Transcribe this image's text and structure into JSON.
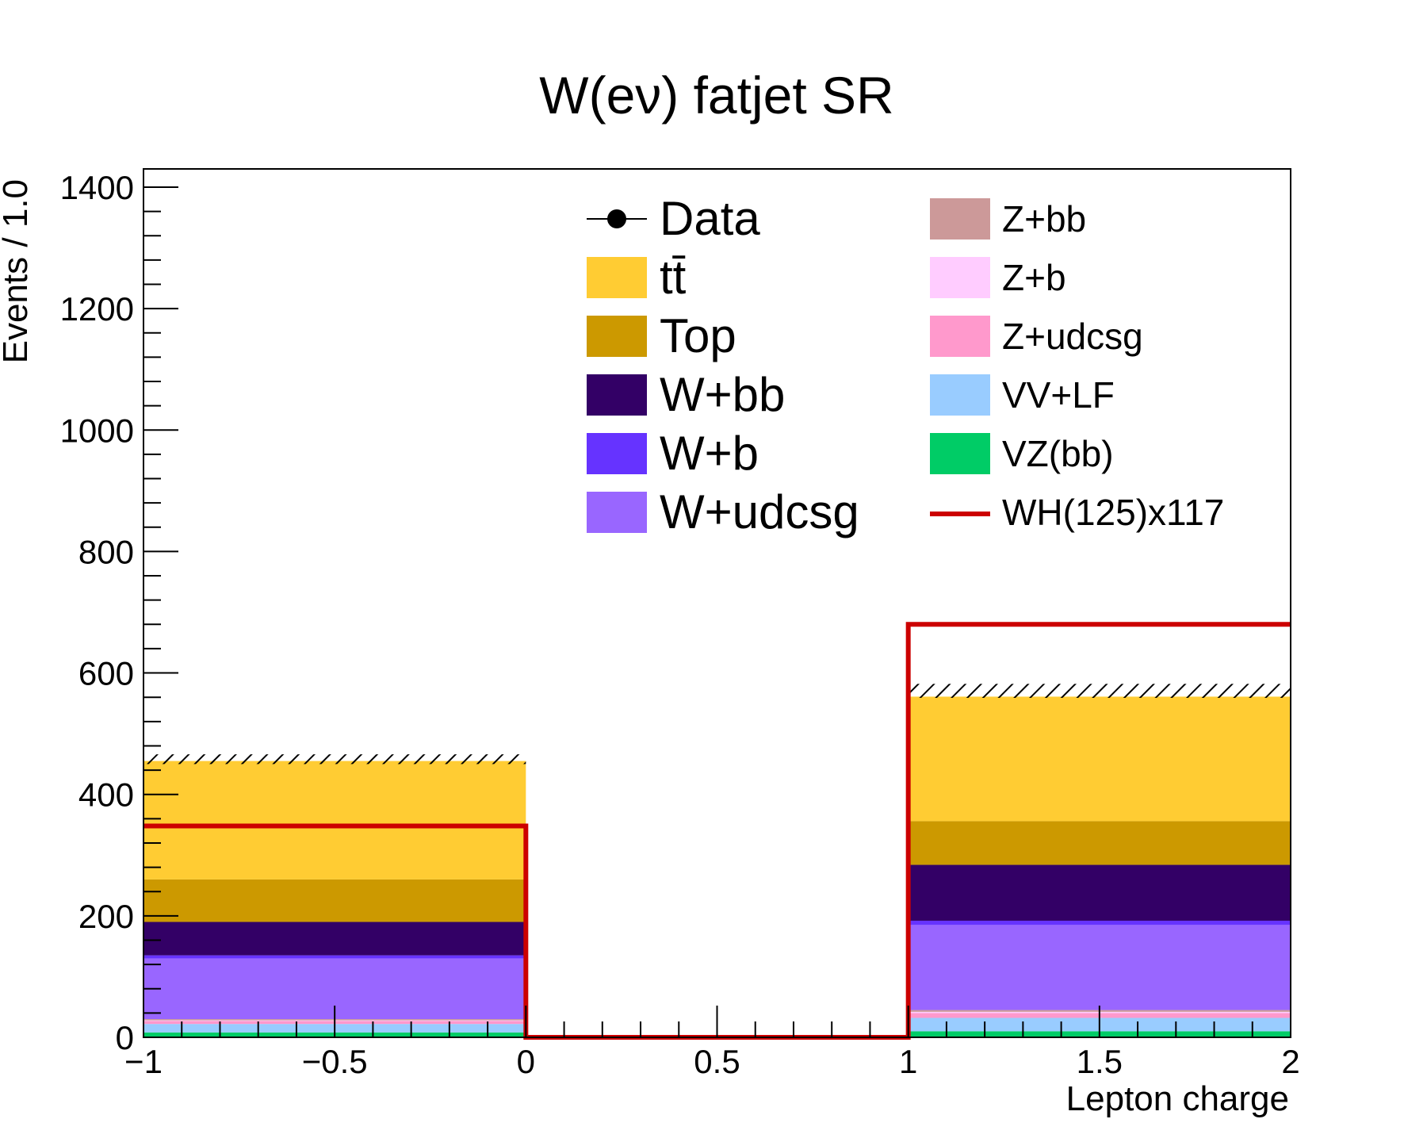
{
  "chart_data": {
    "type": "bar",
    "stacked": true,
    "title": "W(eν) fatjet SR",
    "xlabel": "Lepton charge",
    "ylabel": "Events / 1.0",
    "xlim": [
      -1,
      2
    ],
    "ylim": [
      0,
      1430
    ],
    "x_ticks": [
      "−1",
      "−0.5",
      "0",
      "0.5",
      "1",
      "1.5",
      "2"
    ],
    "y_ticks": [
      "0",
      "200",
      "400",
      "600",
      "800",
      "1000",
      "1200",
      "1400"
    ],
    "bins": [
      [
        -1,
        0
      ],
      [
        0,
        1
      ],
      [
        1,
        2
      ]
    ],
    "series": [
      {
        "name": "VZ(bb)",
        "color": "#00cc66",
        "values": [
          8,
          0,
          10
        ]
      },
      {
        "name": "VV+LF",
        "color": "#99ccff",
        "values": [
          14,
          0,
          22
        ]
      },
      {
        "name": "Z+udcsg",
        "color": "#ff99cc",
        "values": [
          5,
          0,
          8
        ]
      },
      {
        "name": "Z+b",
        "color": "#ffccff",
        "values": [
          1,
          0,
          2
        ]
      },
      {
        "name": "Z+bb",
        "color": "#cc9999",
        "values": [
          2,
          0,
          3
        ]
      },
      {
        "name": "W+udcsg",
        "color": "#9966ff",
        "values": [
          100,
          0,
          140
        ]
      },
      {
        "name": "W+b",
        "color": "#6633ff",
        "values": [
          5,
          0,
          7
        ]
      },
      {
        "name": "W+bb",
        "color": "#330066",
        "values": [
          55,
          0,
          92
        ]
      },
      {
        "name": "Top",
        "color": "#cc9900",
        "values": [
          70,
          0,
          72
        ]
      },
      {
        "name": "tt̄",
        "color": "#ffcc33",
        "values": [
          195,
          0,
          205
        ]
      }
    ],
    "uncertainty_band": {
      "low": [
        450,
        0,
        559
      ],
      "high": [
        466,
        0,
        582
      ]
    },
    "signal": {
      "name": "WH(125)x117",
      "color": "#cc0000",
      "values": [
        348,
        0,
        680
      ]
    },
    "legend": {
      "placement": "top",
      "left_column": [
        {
          "label": "Data",
          "kind": "marker"
        },
        {
          "label": "tt̄",
          "kind": "box",
          "color": "#ffcc33"
        },
        {
          "label": "Top",
          "kind": "box",
          "color": "#cc9900"
        },
        {
          "label": "W+bb",
          "kind": "box",
          "color": "#330066"
        },
        {
          "label": "W+b",
          "kind": "box",
          "color": "#6633ff"
        },
        {
          "label": "W+udcsg",
          "kind": "box",
          "color": "#9966ff"
        }
      ],
      "right_column": [
        {
          "label": "Z+bb",
          "kind": "box",
          "color": "#cc9999"
        },
        {
          "label": "Z+b",
          "kind": "box",
          "color": "#ffccff"
        },
        {
          "label": "Z+udcsg",
          "kind": "box",
          "color": "#ff99cc"
        },
        {
          "label": "VV+LF",
          "kind": "box",
          "color": "#99ccff"
        },
        {
          "label": "VZ(bb)",
          "kind": "box",
          "color": "#00cc66"
        },
        {
          "label": "WH(125)x117",
          "kind": "line",
          "color": "#cc0000"
        }
      ]
    }
  }
}
